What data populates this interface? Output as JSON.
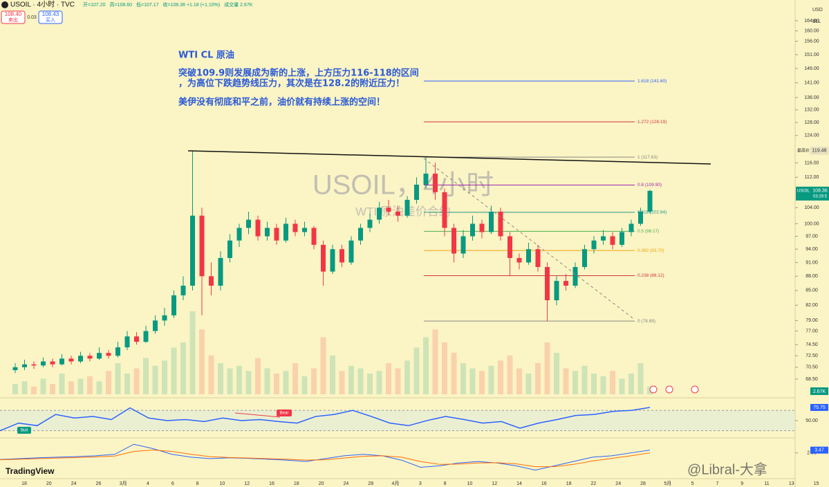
{
  "header": {
    "symbol": "USOIL · 4小时 · TVC",
    "ohlc": [
      "开=107.20",
      "高=108.60",
      "低=107.17",
      "收=108.36 +1.18 (+1.10%)",
      "成交量 2.67K"
    ],
    "sell_price": "108.40",
    "sell": "卖出",
    "spread": "0.03",
    "buy_price": "108.43",
    "buy": "买入",
    "currency": "USD",
    "unit": "BLL"
  },
  "annotation": [
    "WTI  CL   原油",
    "突破109.9则发展成为新的上涨，上方压力116-118的区间",
    "，为高位下跌趋势线压力，其次是在128.2的附近压力！",
    "美伊没有彻底和平之前，油价就有持续上涨的空间！"
  ],
  "watermark": {
    "title": "USOIL，4小时",
    "subtitle": "WTI 原油差价合约"
  },
  "chart_data": {
    "type": "candlestick",
    "ylim": [
      66,
      172.5
    ],
    "log": true,
    "yticks": [
      {
        "value": 164,
        "label": "164.00"
      },
      {
        "value": 160,
        "label": "160.00"
      },
      {
        "value": 156,
        "label": "156.00"
      },
      {
        "value": 151,
        "label": "151.00"
      },
      {
        "value": 146,
        "label": "146.00"
      },
      {
        "value": 141,
        "label": "141.00"
      },
      {
        "value": 136,
        "label": "136.00"
      },
      {
        "value": 132,
        "label": "132.00"
      },
      {
        "value": 128,
        "label": "128.00"
      },
      {
        "value": 124,
        "label": "124.00"
      },
      {
        "value": 116,
        "label": "116.00"
      },
      {
        "value": 112,
        "label": "112.00"
      },
      {
        "value": 104,
        "label": "104.00"
      },
      {
        "value": 100,
        "label": "100.00"
      },
      {
        "value": 97,
        "label": "97.00"
      },
      {
        "value": 94,
        "label": "94.00"
      },
      {
        "value": 91,
        "label": "91.00"
      },
      {
        "value": 88,
        "label": "88.00"
      },
      {
        "value": 85,
        "label": "85.00"
      },
      {
        "value": 82,
        "label": "82.00"
      },
      {
        "value": 79,
        "label": "79.00"
      },
      {
        "value": 77,
        "label": "77.00"
      },
      {
        "value": 74.5,
        "label": "74.50"
      },
      {
        "value": 72.5,
        "label": "72.50"
      },
      {
        "value": 70.5,
        "label": "70.50"
      },
      {
        "value": 68.5,
        "label": "68.50"
      }
    ],
    "up_color": "#089981",
    "down_color": "#f23645",
    "candles": [
      [
        70,
        71.2,
        69.5,
        70.5
      ],
      [
        70.5,
        71.8,
        70,
        71
      ],
      [
        71,
        71.5,
        70.2,
        70.8
      ],
      [
        70.8,
        72.2,
        70.5,
        71.5
      ],
      [
        71.5,
        72,
        70.5,
        71
      ],
      [
        71,
        72.8,
        70.8,
        72
      ],
      [
        72,
        72.5,
        71,
        71.5
      ],
      [
        71.5,
        73.2,
        71.2,
        72.5
      ],
      [
        72.5,
        73,
        71.5,
        72
      ],
      [
        72,
        74,
        71.8,
        73
      ],
      [
        73,
        73.5,
        72,
        72.5
      ],
      [
        72.5,
        75,
        72.2,
        74
      ],
      [
        74,
        77,
        73.5,
        76
      ],
      [
        76,
        76.8,
        74.5,
        75
      ],
      [
        75,
        78,
        74.8,
        77
      ],
      [
        77,
        80,
        76.5,
        79
      ],
      [
        79,
        81.5,
        78,
        80
      ],
      [
        80,
        85,
        79.5,
        84
      ],
      [
        84,
        88,
        83,
        86
      ],
      [
        86,
        119.48,
        85,
        102
      ],
      [
        102,
        104,
        80,
        88
      ],
      [
        88,
        91,
        84,
        86
      ],
      [
        86,
        93.5,
        85,
        92
      ],
      [
        92,
        97.5,
        91,
        96
      ],
      [
        96,
        100,
        94.5,
        99
      ],
      [
        99,
        103,
        97.5,
        101
      ],
      [
        101,
        102,
        96,
        97
      ],
      [
        97,
        100.5,
        96,
        99
      ],
      [
        99,
        100,
        95,
        96
      ],
      [
        96,
        101.5,
        95.5,
        100
      ],
      [
        100,
        101,
        97,
        98
      ],
      [
        98,
        100.5,
        97,
        99
      ],
      [
        99,
        99.5,
        94,
        95
      ],
      [
        95,
        96,
        86,
        89
      ],
      [
        89,
        95,
        88.5,
        94
      ],
      [
        94,
        95,
        90,
        91
      ],
      [
        91,
        97,
        90.5,
        96
      ],
      [
        96,
        100,
        95,
        99
      ],
      [
        99,
        102.5,
        98,
        101
      ],
      [
        101,
        105.5,
        100,
        104
      ],
      [
        104,
        106,
        102,
        103
      ],
      [
        103,
        104.5,
        100.5,
        102
      ],
      [
        102,
        107,
        101.5,
        106
      ],
      [
        106,
        112,
        105,
        110
      ],
      [
        110,
        117.63,
        109,
        113
      ],
      [
        113,
        116,
        106,
        108
      ],
      [
        108,
        109,
        97,
        99
      ],
      [
        99,
        100,
        91,
        93
      ],
      [
        93,
        98.5,
        92,
        97
      ],
      [
        97,
        102,
        96,
        100
      ],
      [
        100,
        101,
        96.5,
        98
      ],
      [
        98,
        104.5,
        97.5,
        103
      ],
      [
        103,
        104,
        96,
        97
      ],
      [
        97,
        98,
        88,
        92
      ],
      [
        92,
        93,
        89.5,
        91
      ],
      [
        91,
        95.5,
        90.5,
        94
      ],
      [
        94,
        95,
        89,
        90
      ],
      [
        90,
        91,
        78.89,
        83
      ],
      [
        83,
        88,
        82,
        87
      ],
      [
        87,
        88.5,
        85,
        86
      ],
      [
        86,
        91,
        85.5,
        90
      ],
      [
        90,
        95,
        89.5,
        94
      ],
      [
        94,
        97,
        93,
        96
      ],
      [
        96,
        98.5,
        95,
        97
      ],
      [
        97,
        98,
        94,
        95
      ],
      [
        95,
        99,
        94.5,
        98
      ],
      [
        98,
        101,
        97,
        100
      ],
      [
        100,
        104,
        99.5,
        103
      ],
      [
        103,
        108.6,
        102.5,
        108.36
      ]
    ],
    "volume": [
      4,
      5,
      3,
      6,
      4,
      8,
      5,
      6,
      7,
      5,
      9,
      12,
      8,
      10,
      14,
      11,
      13,
      18,
      20,
      32,
      25,
      15,
      12,
      10,
      11,
      9,
      14,
      10,
      8,
      9,
      12,
      7,
      10,
      22,
      15,
      9,
      11,
      10,
      8,
      9,
      12,
      10,
      13,
      18,
      22,
      25,
      20,
      16,
      12,
      10,
      9,
      11,
      13,
      15,
      10,
      8,
      12,
      20,
      16,
      10,
      9,
      11,
      8,
      7,
      9,
      6,
      8,
      12,
      3
    ],
    "volume_lim": [
      0,
      40
    ],
    "volume_label": "2.67K",
    "high": {
      "label": "最高价",
      "value": 119.48,
      "value_label": "119.48"
    },
    "last": {
      "symbol": "USOIL",
      "value": 108.36,
      "value_label": "108.36",
      "countdown": "03:29:5"
    },
    "fib": [
      {
        "value": 141.6,
        "label": "1.618 (141.60)",
        "color": "#2962ff"
      },
      {
        "value": 128.19,
        "label": "1.272 (128.19)",
        "color": "#d0343a"
      },
      {
        "value": 117.63,
        "label": "1 (117.63)",
        "color": "#888888"
      },
      {
        "value": 109.9,
        "label": "0.8 (109.90)",
        "color": "#9c27b0"
      },
      {
        "value": 102.84,
        "label": "0.618 (102.84)",
        "color": "#22988a"
      },
      {
        "value": 98.17,
        "label": "0.5 (98.17)",
        "color": "#4caf50"
      },
      {
        "value": 93.7,
        "label": "0.382 (93.70)",
        "color": "#f0a30a"
      },
      {
        "value": 88.12,
        "label": "0.238 (88.12)",
        "color": "#d0343a"
      },
      {
        "value": 78.89,
        "label": "0 (78.89)",
        "color": "#888888"
      }
    ],
    "dates": [
      "18",
      "20",
      "24",
      "26",
      "3月",
      "4",
      "6",
      "8",
      "10",
      "12",
      "16",
      "18",
      "20",
      "24",
      "28",
      "4月",
      "3",
      "8",
      "10",
      "12",
      "14",
      "16",
      "18",
      "22",
      "24",
      "28",
      "5月",
      "5",
      "7",
      "9",
      "11",
      "13",
      "15"
    ],
    "rsi": {
      "values": [
        30,
        45,
        40,
        62,
        55,
        58,
        52,
        75,
        55,
        50,
        52,
        48,
        55,
        50,
        52,
        48,
        45,
        58,
        62,
        70,
        58,
        45,
        40,
        50,
        58,
        52,
        45,
        48,
        35,
        45,
        52,
        60,
        62,
        68,
        70,
        75.75
      ],
      "ylim": [
        20,
        88
      ],
      "levels": [
        70,
        30
      ],
      "yticks": [
        {
          "value": 50,
          "label": "50.00"
        }
      ],
      "value_label": "75.75",
      "color": "#2962ff",
      "bull": "Bull",
      "bear": "Bear"
    },
    "macd": {
      "ylim": [
        -6,
        7
      ],
      "series": [
        {
          "values": [
            0.2,
            0.5,
            0.8,
            1,
            1.2,
            1.5,
            2,
            5.5,
            4,
            2,
            1,
            0.5,
            0.8,
            0.6,
            0.3,
            0,
            -0.5,
            0.5,
            1.5,
            2,
            1.5,
            0,
            -2.5,
            -2,
            -1,
            -0.5,
            -1,
            -2,
            -3.5,
            -2,
            -0.5,
            1,
            1.5,
            2.5,
            3.47
          ],
          "color": "#2962ff",
          "value_label": "3.47"
        },
        {
          "values": [
            0.1,
            0.3,
            0.5,
            0.7,
            0.9,
            1.1,
            1.4,
            3,
            3.5,
            3,
            2,
            1.2,
            0.9,
            0.7,
            0.5,
            0.3,
            0,
            0.1,
            0.7,
            1.3,
            1.5,
            1,
            -0.5,
            -1.5,
            -1.4,
            -1,
            -0.9,
            -1.3,
            -2.3,
            -2.3,
            -1.5,
            -0.3,
            0.6,
            1.5,
            2.5
          ],
          "color": "#ff6d00"
        }
      ],
      "yticks": [
        {
          "value": 2.5,
          "label": "2.50"
        }
      ]
    }
  },
  "brand": "TradingView",
  "credit": "@Libral-大拿"
}
